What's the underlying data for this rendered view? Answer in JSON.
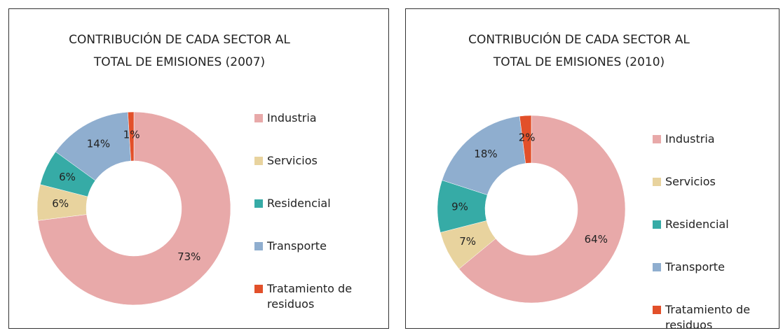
{
  "chart_data": [
    {
      "type": "donut",
      "title": "CONTRIBUCIÓN  DE CADA SECTOR AL TOTAL DE EMISIONES (2007)",
      "categories": [
        "Industria",
        "Servicios",
        "Residencial",
        "Transporte",
        "Tratamiento de residuos"
      ],
      "values": [
        73,
        6,
        6,
        14,
        1
      ],
      "value_labels": [
        "73%",
        "6%",
        "6%",
        "14%",
        "1%"
      ],
      "colors": [
        "#e8a9a9",
        "#e8d39e",
        "#36aba6",
        "#8faecf",
        "#e2502a"
      ]
    },
    {
      "type": "donut",
      "title": "CONTRIBUCIÓN  DE CADA SECTOR AL TOTAL DE EMISIONES (2010)",
      "categories": [
        "Industria",
        "Servicios",
        "Residencial",
        "Transporte",
        "Tratamiento de residuos"
      ],
      "values": [
        64,
        7,
        9,
        18,
        2
      ],
      "value_labels": [
        "64%",
        "7%",
        "9%",
        "18%",
        "2%"
      ],
      "colors": [
        "#e8a9a9",
        "#e8d39e",
        "#36aba6",
        "#8faecf",
        "#e2502a"
      ]
    }
  ]
}
